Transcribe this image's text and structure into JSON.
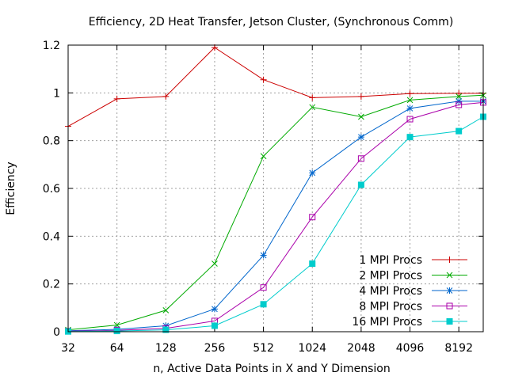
{
  "chart_data": {
    "type": "line",
    "title": "Efficiency, 2D Heat Transfer, Jetson Cluster, (Synchronous Comm)",
    "xlabel": "n, Active Data Points in X and Y Dimension",
    "ylabel": "Efficiency",
    "x_scale": "log2",
    "xlim": [
      32,
      11585
    ],
    "ylim": [
      0,
      1.2
    ],
    "grid": true,
    "legend_position": "bottom-right",
    "x_ticks": [
      "32",
      "64",
      "128",
      "256",
      "512",
      "1024",
      "2048",
      "4096",
      "8192"
    ],
    "y_ticks": [
      "0",
      "0.2",
      "0.4",
      "0.6",
      "0.8",
      "1",
      "1.2"
    ],
    "x": [
      32,
      64,
      128,
      256,
      512,
      1024,
      2048,
      4096,
      8192,
      11585
    ],
    "series": [
      {
        "name": "1 MPI Procs",
        "color": "#cc0000",
        "marker": "plus",
        "values": [
          0.86,
          0.975,
          0.985,
          1.19,
          1.055,
          0.98,
          0.985,
          0.997,
          0.998,
          0.998
        ]
      },
      {
        "name": "2 MPI Procs",
        "color": "#00aa00",
        "marker": "x",
        "values": [
          0.008,
          0.028,
          0.09,
          0.285,
          0.735,
          0.94,
          0.9,
          0.97,
          0.985,
          0.99
        ]
      },
      {
        "name": "4 MPI Procs",
        "color": "#0066cc",
        "marker": "star",
        "values": [
          0.004,
          0.01,
          0.025,
          0.095,
          0.32,
          0.665,
          0.815,
          0.935,
          0.965,
          0.965
        ]
      },
      {
        "name": "8 MPI Procs",
        "color": "#aa00aa",
        "marker": "open-square",
        "values": [
          0.002,
          0.006,
          0.014,
          0.045,
          0.185,
          0.48,
          0.725,
          0.89,
          0.95,
          0.96
        ]
      },
      {
        "name": "16 MPI Procs",
        "color": "#00cccc",
        "marker": "filled-square",
        "values": [
          0.001,
          0.003,
          0.008,
          0.025,
          0.115,
          0.285,
          0.615,
          0.815,
          0.84,
          0.9
        ]
      }
    ]
  }
}
